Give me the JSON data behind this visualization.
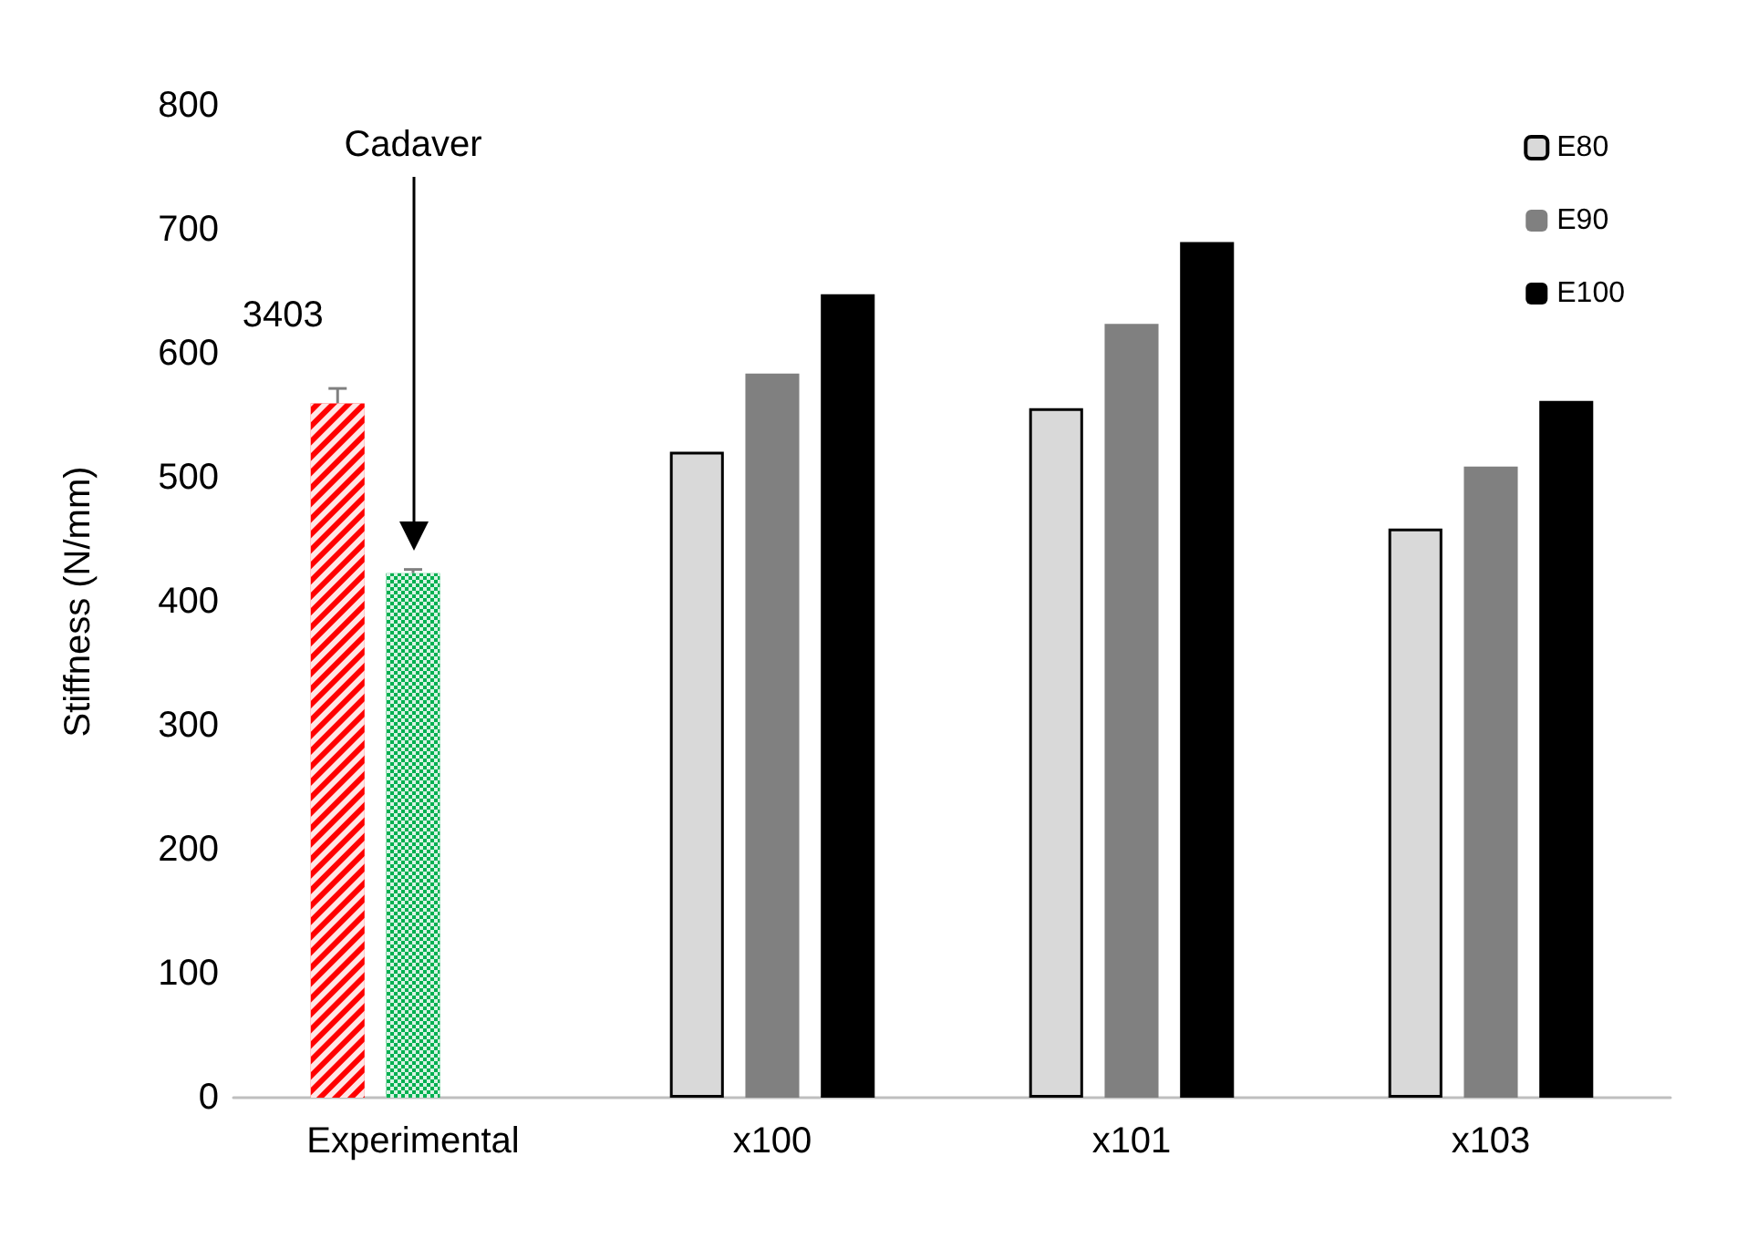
{
  "chart_data": {
    "type": "bar",
    "ylabel": "Stiffness (N/mm)",
    "categories": [
      "Experimental",
      "x100",
      "x101",
      "x103"
    ],
    "series": [
      {
        "color": "#ff0000",
        "values": [
          560,
          null,
          null,
          null
        ],
        "errors": [
          12,
          null,
          null,
          null
        ]
      },
      {
        "color": "#00b050",
        "values": [
          423,
          null,
          null,
          null
        ],
        "errors": [
          3,
          null,
          null,
          null
        ]
      },
      {
        "name": "E80",
        "color": "#d9d9d9",
        "values": [
          null,
          521,
          556,
          459
        ]
      },
      {
        "name": "E90",
        "color": "#808080",
        "values": [
          null,
          584,
          624,
          509
        ]
      },
      {
        "name": "E100",
        "color": "#000000",
        "values": [
          null,
          648,
          690,
          562
        ]
      }
    ],
    "annotations": [
      "3403",
      "Cadaver"
    ],
    "ylim": [
      0,
      800
    ],
    "yticks": [
      0,
      100,
      200,
      300,
      400,
      500,
      600,
      700,
      800
    ],
    "grid": false,
    "legend": "top right"
  }
}
